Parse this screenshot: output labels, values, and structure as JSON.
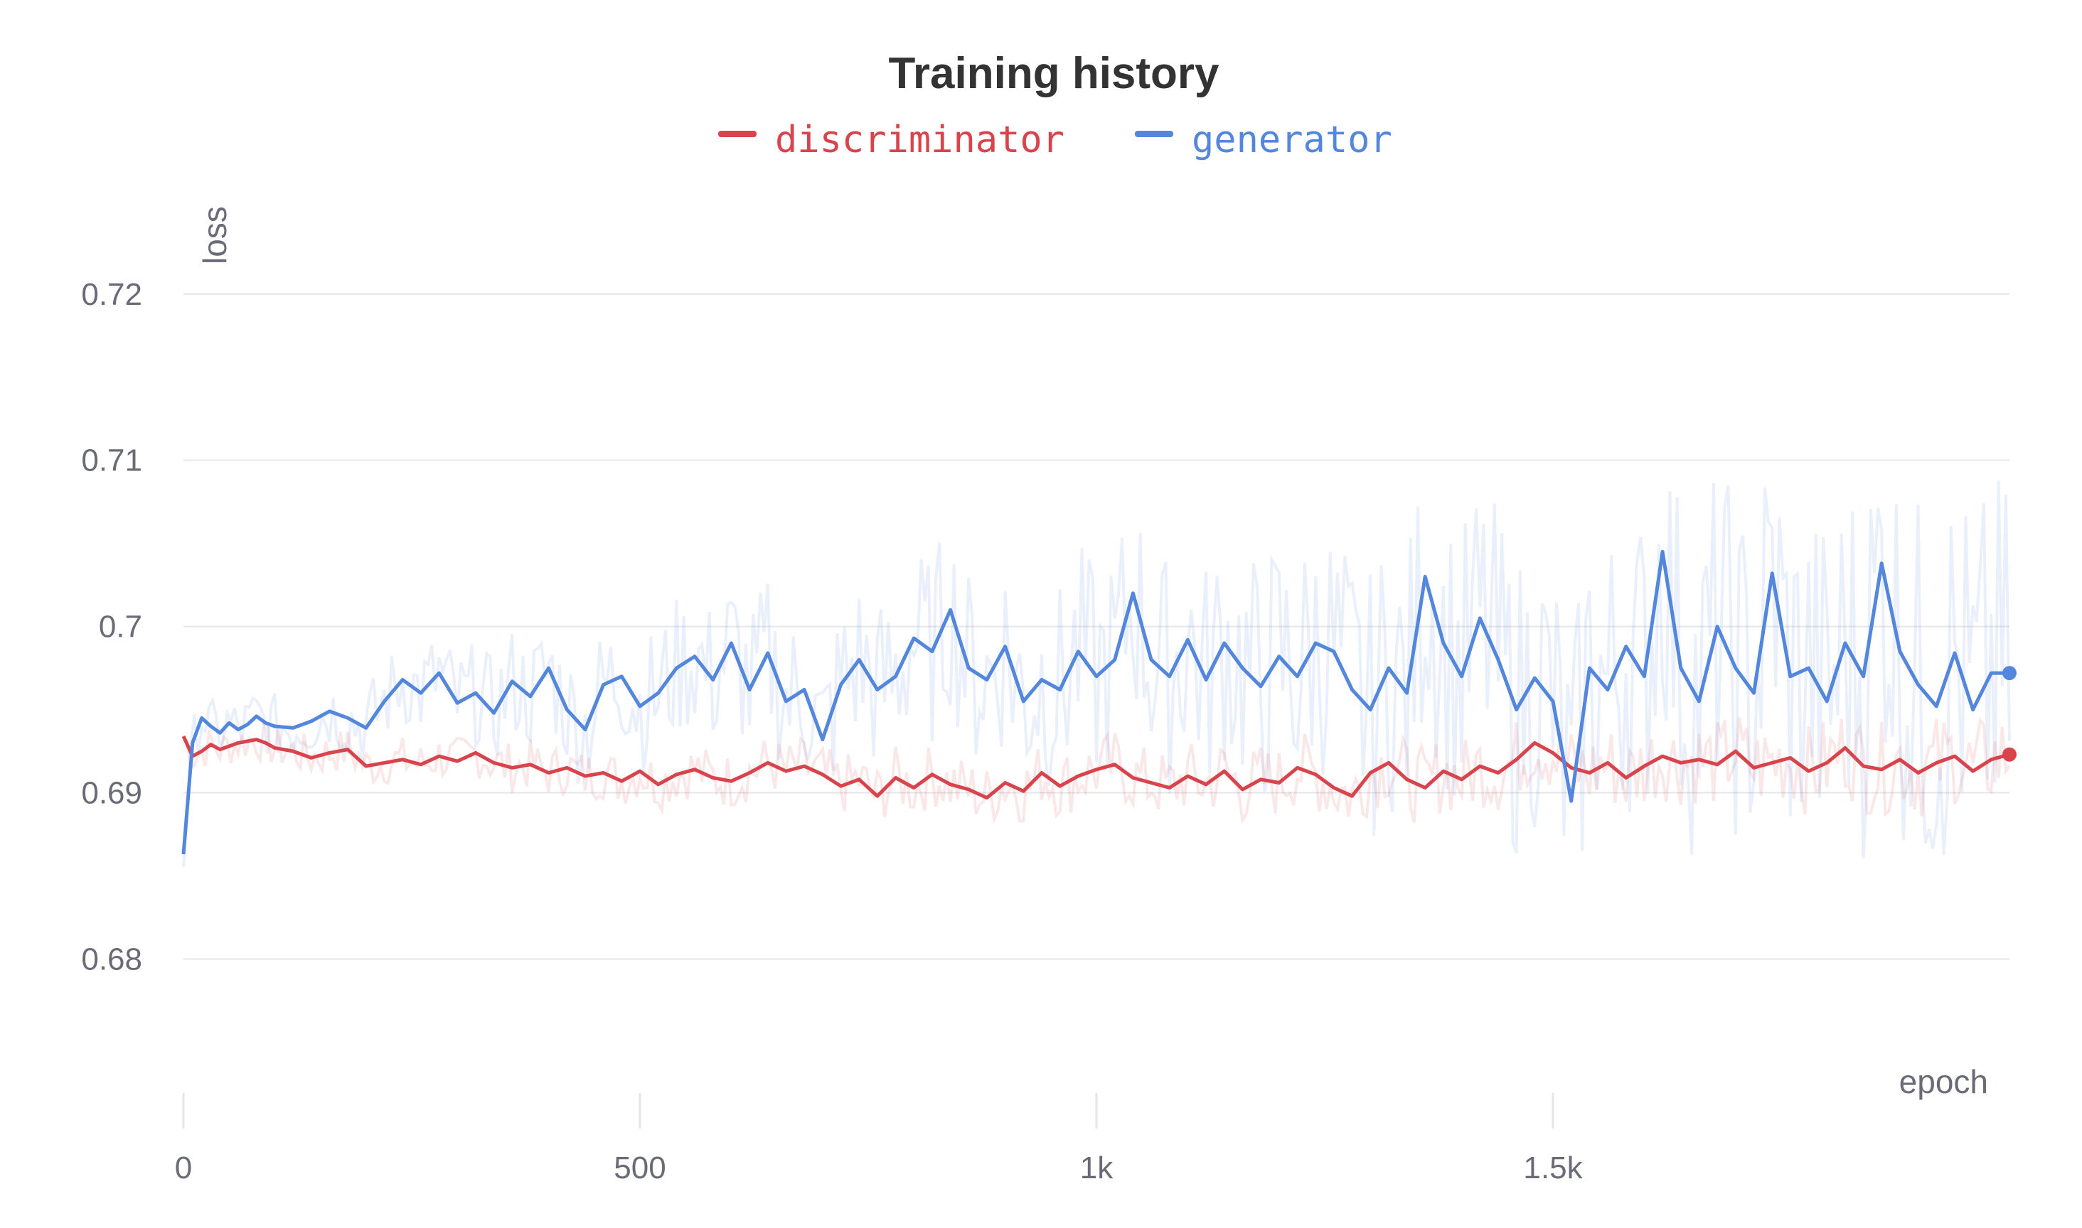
{
  "chart_data": {
    "type": "line",
    "title": "Training history",
    "xlabel": "epoch",
    "ylabel": "loss",
    "xlim": [
      0,
      2000
    ],
    "ylim": [
      0.671,
      0.727
    ],
    "x_ticks": [
      {
        "value": 0,
        "label": "0"
      },
      {
        "value": 500,
        "label": "500"
      },
      {
        "value": 1000,
        "label": "1k"
      },
      {
        "value": 1500,
        "label": "1.5k"
      }
    ],
    "y_ticks": [
      {
        "value": 0.68,
        "label": "0.68"
      },
      {
        "value": 0.69,
        "label": "0.69"
      },
      {
        "value": 0.7,
        "label": "0.7"
      },
      {
        "value": 0.71,
        "label": "0.71"
      },
      {
        "value": 0.72,
        "label": "0.72"
      }
    ],
    "grid": true,
    "legend_position": "top-center",
    "series": [
      {
        "name": "discriminator",
        "color": "#d9444c",
        "raw_opacity": 0.12,
        "final_value": 0.6923,
        "x": [
          0,
          10,
          20,
          30,
          40,
          50,
          60,
          70,
          80,
          90,
          100,
          120,
          140,
          160,
          180,
          200,
          220,
          240,
          260,
          280,
          300,
          320,
          340,
          360,
          380,
          400,
          420,
          440,
          460,
          480,
          500,
          520,
          540,
          560,
          580,
          600,
          620,
          640,
          660,
          680,
          700,
          720,
          740,
          760,
          780,
          800,
          820,
          840,
          860,
          880,
          900,
          920,
          940,
          960,
          980,
          1000,
          1020,
          1040,
          1060,
          1080,
          1100,
          1120,
          1140,
          1160,
          1180,
          1200,
          1220,
          1240,
          1260,
          1280,
          1300,
          1320,
          1340,
          1360,
          1380,
          1400,
          1420,
          1440,
          1460,
          1480,
          1500,
          1520,
          1540,
          1560,
          1580,
          1600,
          1620,
          1640,
          1660,
          1680,
          1700,
          1720,
          1740,
          1760,
          1780,
          1800,
          1820,
          1840,
          1860,
          1880,
          1900,
          1920,
          1940,
          1960,
          1980,
          2000
        ],
        "values": [
          0.6934,
          0.6922,
          0.6925,
          0.6929,
          0.6926,
          0.6928,
          0.693,
          0.6931,
          0.6932,
          0.693,
          0.6927,
          0.6925,
          0.6921,
          0.6924,
          0.6926,
          0.6916,
          0.6918,
          0.692,
          0.6917,
          0.6922,
          0.6919,
          0.6924,
          0.6918,
          0.6915,
          0.6917,
          0.6912,
          0.6915,
          0.691,
          0.6912,
          0.6907,
          0.6913,
          0.6905,
          0.6911,
          0.6914,
          0.6909,
          0.6907,
          0.6912,
          0.6918,
          0.6913,
          0.6916,
          0.6911,
          0.6904,
          0.6908,
          0.6898,
          0.6909,
          0.6903,
          0.6911,
          0.6905,
          0.6902,
          0.6897,
          0.6906,
          0.6901,
          0.6912,
          0.6904,
          0.691,
          0.6914,
          0.6917,
          0.6909,
          0.6906,
          0.6903,
          0.691,
          0.6905,
          0.6913,
          0.6902,
          0.6908,
          0.6906,
          0.6915,
          0.6911,
          0.6903,
          0.6898,
          0.6912,
          0.6918,
          0.6908,
          0.6903,
          0.6913,
          0.6908,
          0.6916,
          0.6912,
          0.692,
          0.693,
          0.6924,
          0.6915,
          0.6912,
          0.6918,
          0.6909,
          0.6916,
          0.6922,
          0.6918,
          0.692,
          0.6917,
          0.6925,
          0.6915,
          0.6918,
          0.6921,
          0.6913,
          0.6918,
          0.6927,
          0.6916,
          0.6914,
          0.692,
          0.6912,
          0.6918,
          0.6922,
          0.6913,
          0.692,
          0.6923
        ]
      },
      {
        "name": "generator",
        "color": "#5387dd",
        "raw_opacity": 0.12,
        "final_value": 0.6972,
        "x": [
          0,
          10,
          20,
          30,
          40,
          50,
          60,
          70,
          80,
          90,
          100,
          120,
          140,
          160,
          180,
          200,
          220,
          240,
          260,
          280,
          300,
          320,
          340,
          360,
          380,
          400,
          420,
          440,
          460,
          480,
          500,
          520,
          540,
          560,
          580,
          600,
          620,
          640,
          660,
          680,
          700,
          720,
          740,
          760,
          780,
          800,
          820,
          840,
          860,
          880,
          900,
          920,
          940,
          960,
          980,
          1000,
          1020,
          1040,
          1060,
          1080,
          1100,
          1120,
          1140,
          1160,
          1180,
          1200,
          1220,
          1240,
          1260,
          1280,
          1300,
          1320,
          1340,
          1360,
          1380,
          1400,
          1420,
          1440,
          1460,
          1480,
          1500,
          1520,
          1540,
          1560,
          1580,
          1600,
          1620,
          1640,
          1660,
          1680,
          1700,
          1720,
          1740,
          1760,
          1780,
          1800,
          1820,
          1840,
          1860,
          1880,
          1900,
          1920,
          1940,
          1960,
          1980,
          2000
        ],
        "values": [
          0.6863,
          0.693,
          0.6945,
          0.694,
          0.6936,
          0.6942,
          0.6938,
          0.6941,
          0.6946,
          0.6942,
          0.694,
          0.6939,
          0.6943,
          0.6949,
          0.6945,
          0.6939,
          0.6955,
          0.6968,
          0.696,
          0.6972,
          0.6954,
          0.696,
          0.6948,
          0.6967,
          0.6958,
          0.6975,
          0.695,
          0.6938,
          0.6965,
          0.697,
          0.6952,
          0.696,
          0.6975,
          0.6982,
          0.6968,
          0.699,
          0.6962,
          0.6984,
          0.6955,
          0.6962,
          0.6932,
          0.6965,
          0.698,
          0.6962,
          0.697,
          0.6993,
          0.6985,
          0.701,
          0.6975,
          0.6968,
          0.6988,
          0.6955,
          0.6968,
          0.6962,
          0.6985,
          0.697,
          0.698,
          0.702,
          0.698,
          0.697,
          0.6992,
          0.6968,
          0.699,
          0.6975,
          0.6964,
          0.6982,
          0.697,
          0.699,
          0.6985,
          0.6962,
          0.695,
          0.6975,
          0.696,
          0.703,
          0.699,
          0.697,
          0.7005,
          0.698,
          0.695,
          0.6969,
          0.6955,
          0.6895,
          0.6975,
          0.6962,
          0.6988,
          0.697,
          0.7045,
          0.6975,
          0.6955,
          0.7,
          0.6975,
          0.696,
          0.7032,
          0.697,
          0.6975,
          0.6955,
          0.699,
          0.697,
          0.7038,
          0.6985,
          0.6965,
          0.6952,
          0.6984,
          0.695,
          0.6972,
          0.6972
        ]
      }
    ]
  }
}
